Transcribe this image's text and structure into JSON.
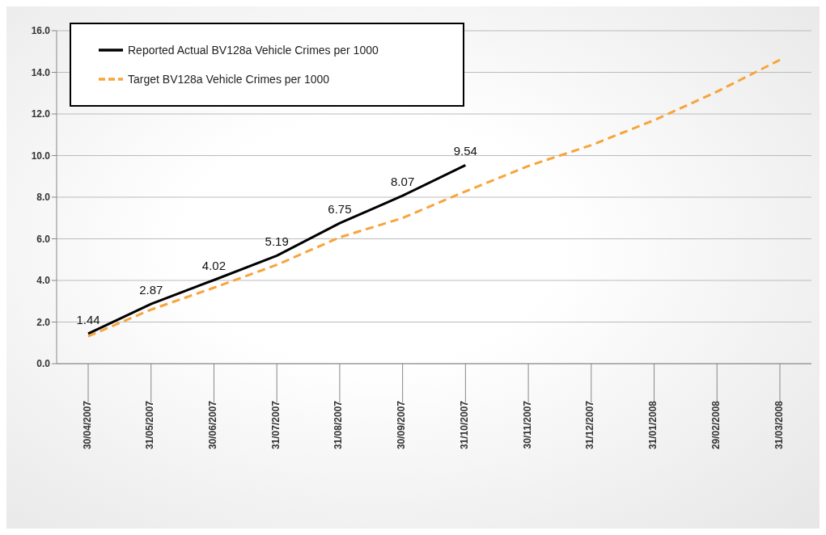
{
  "chart_data": {
    "type": "line",
    "categories": [
      "30/04/2007",
      "31/05/2007",
      "30/06/2007",
      "31/07/2007",
      "31/08/2007",
      "30/09/2007",
      "31/10/2007",
      "30/11/2007",
      "31/12/2007",
      "31/01/2008",
      "29/02/2008",
      "31/03/2008"
    ],
    "series": [
      {
        "name": "Reported Actual BV128a Vehicle Crimes per 1000",
        "color": "#000000",
        "line_style": "solid",
        "values": [
          1.44,
          2.87,
          4.02,
          5.19,
          6.75,
          8.07,
          9.54,
          null,
          null,
          null,
          null,
          null
        ],
        "value_labels": [
          "1.44",
          "2.87",
          "4.02",
          "5.19",
          "6.75",
          "8.07",
          "9.54",
          null,
          null,
          null,
          null,
          null
        ]
      },
      {
        "name": "Target BV128a Vehicle Crimes per 1000",
        "color": "#f8a43a",
        "line_style": "dashed",
        "values": [
          1.32,
          2.6,
          3.65,
          4.75,
          6.07,
          7.0,
          8.28,
          9.5,
          10.5,
          11.7,
          13.07,
          14.6
        ]
      }
    ],
    "ylim": [
      0,
      16
    ],
    "yticks": [
      {
        "value": 0,
        "label": "0.0"
      },
      {
        "value": 2,
        "label": "2.0"
      },
      {
        "value": 4,
        "label": "4.0"
      },
      {
        "value": 6,
        "label": "6.0"
      },
      {
        "value": 8,
        "label": "8.0"
      },
      {
        "value": 10,
        "label": "10.0"
      },
      {
        "value": 12,
        "label": "12.0"
      },
      {
        "value": 14,
        "label": "14.0"
      },
      {
        "value": 16,
        "label": "16.0"
      }
    ],
    "grid": "y",
    "legend": "top left",
    "marker": "none"
  }
}
